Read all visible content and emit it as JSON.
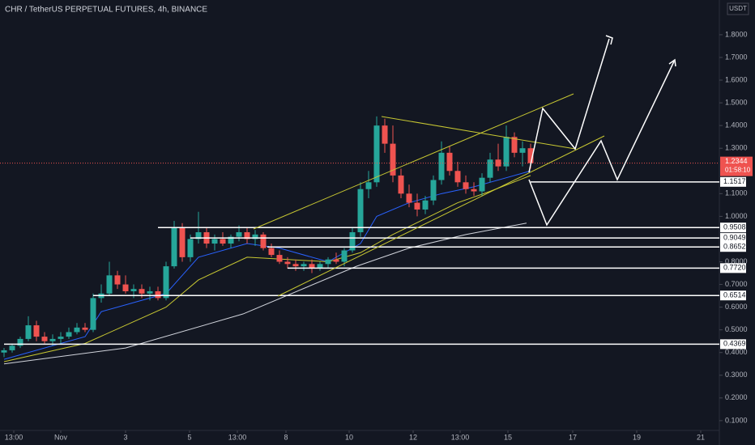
{
  "chart_data": {
    "type": "candlestick",
    "title": "CHR / TetherUS PERPETUAL FUTURES, 4h, BINANCE",
    "currency": "USDT",
    "countdown": "01:58:10",
    "up_color": "#26a69a",
    "down_color": "#ef5350",
    "xlim": [
      -0.5,
      88.3
    ],
    "ylim": [
      0.064,
      1.953
    ],
    "xticks": [
      {
        "value": 1.2,
        "label": "13:00"
      },
      {
        "value": 7,
        "label": "Nov"
      },
      {
        "value": 15,
        "label": "3"
      },
      {
        "value": 22.9,
        "label": "5"
      },
      {
        "value": 28.8,
        "label": "13:00"
      },
      {
        "value": 34.8,
        "label": "8"
      },
      {
        "value": 42.6,
        "label": "10"
      },
      {
        "value": 50.5,
        "label": "12"
      },
      {
        "value": 56.3,
        "label": "13:00"
      },
      {
        "value": 62.2,
        "label": "15"
      },
      {
        "value": 70.2,
        "label": "17"
      },
      {
        "value": 78.1,
        "label": "19"
      },
      {
        "value": 86,
        "label": "21"
      }
    ],
    "yticks": [
      {
        "value": 0.1,
        "label": "0.1000"
      },
      {
        "value": 0.2,
        "label": "0.2000"
      },
      {
        "value": 0.3,
        "label": "0.3000"
      },
      {
        "value": 0.4,
        "label": "0.4000"
      },
      {
        "value": 0.5,
        "label": "0.5000"
      },
      {
        "value": 0.6,
        "label": "0.6000"
      },
      {
        "value": 0.7,
        "label": "0.7000"
      },
      {
        "value": 0.8,
        "label": "0.8000"
      },
      {
        "value": 1.0,
        "label": "1.0000"
      },
      {
        "value": 1.1,
        "label": "1.1000"
      },
      {
        "value": 1.3,
        "label": "1.3000"
      },
      {
        "value": 1.4,
        "label": "1.4000"
      },
      {
        "value": 1.5,
        "label": "1.5000"
      },
      {
        "value": 1.6,
        "label": "1.6000"
      },
      {
        "value": 1.7,
        "label": "1.7000"
      },
      {
        "value": 1.8,
        "label": "1.8000"
      }
    ],
    "x": [
      0,
      1,
      2,
      3,
      4,
      5,
      6,
      7,
      8,
      9,
      10,
      11,
      12,
      13,
      14,
      15,
      16,
      17,
      18,
      19,
      20,
      21,
      22,
      23,
      24,
      25,
      26,
      27,
      28,
      29,
      30,
      31,
      32,
      33,
      34,
      35,
      36,
      37,
      38,
      39,
      40,
      41,
      42,
      43,
      44,
      45,
      46,
      47,
      48,
      49,
      50,
      51,
      52,
      53,
      54,
      55,
      56,
      57,
      58,
      59,
      60,
      61,
      62,
      63,
      64,
      65
    ],
    "candles": [
      [
        0.4,
        0.42,
        0.38,
        0.41
      ],
      [
        0.41,
        0.44,
        0.4,
        0.43
      ],
      [
        0.43,
        0.47,
        0.42,
        0.46
      ],
      [
        0.46,
        0.56,
        0.45,
        0.52
      ],
      [
        0.52,
        0.54,
        0.45,
        0.47
      ],
      [
        0.47,
        0.49,
        0.44,
        0.45
      ],
      [
        0.45,
        0.48,
        0.43,
        0.46
      ],
      [
        0.46,
        0.49,
        0.44,
        0.47
      ],
      [
        0.47,
        0.51,
        0.46,
        0.49
      ],
      [
        0.49,
        0.53,
        0.48,
        0.51
      ],
      [
        0.51,
        0.53,
        0.49,
        0.5
      ],
      [
        0.5,
        0.66,
        0.49,
        0.64
      ],
      [
        0.64,
        0.7,
        0.62,
        0.66
      ],
      [
        0.66,
        0.8,
        0.65,
        0.74
      ],
      [
        0.74,
        0.76,
        0.68,
        0.7
      ],
      [
        0.7,
        0.74,
        0.66,
        0.67
      ],
      [
        0.67,
        0.7,
        0.64,
        0.68
      ],
      [
        0.68,
        0.7,
        0.64,
        0.66
      ],
      [
        0.66,
        0.69,
        0.63,
        0.67
      ],
      [
        0.67,
        0.69,
        0.63,
        0.64
      ],
      [
        0.64,
        0.8,
        0.63,
        0.78
      ],
      [
        0.78,
        0.98,
        0.77,
        0.95
      ],
      [
        0.95,
        0.97,
        0.8,
        0.82
      ],
      [
        0.82,
        0.92,
        0.8,
        0.9
      ],
      [
        0.9,
        1.02,
        0.88,
        0.93
      ],
      [
        0.93,
        0.95,
        0.86,
        0.88
      ],
      [
        0.88,
        0.92,
        0.85,
        0.9
      ],
      [
        0.9,
        0.93,
        0.87,
        0.88
      ],
      [
        0.88,
        0.92,
        0.86,
        0.91
      ],
      [
        0.91,
        0.96,
        0.89,
        0.93
      ],
      [
        0.93,
        0.95,
        0.88,
        0.9
      ],
      [
        0.9,
        0.94,
        0.87,
        0.92
      ],
      [
        0.92,
        0.93,
        0.85,
        0.86
      ],
      [
        0.86,
        0.88,
        0.82,
        0.83
      ],
      [
        0.83,
        0.85,
        0.79,
        0.8
      ],
      [
        0.8,
        0.82,
        0.77,
        0.79
      ],
      [
        0.79,
        0.81,
        0.76,
        0.78
      ],
      [
        0.78,
        0.8,
        0.76,
        0.79
      ],
      [
        0.79,
        0.81,
        0.75,
        0.77
      ],
      [
        0.77,
        0.8,
        0.76,
        0.79
      ],
      [
        0.79,
        0.82,
        0.77,
        0.81
      ],
      [
        0.81,
        0.84,
        0.79,
        0.8
      ],
      [
        0.8,
        0.86,
        0.78,
        0.85
      ],
      [
        0.85,
        0.95,
        0.84,
        0.93
      ],
      [
        0.93,
        1.15,
        0.91,
        1.12
      ],
      [
        1.12,
        1.2,
        1.08,
        1.15
      ],
      [
        1.15,
        1.44,
        1.13,
        1.4
      ],
      [
        1.4,
        1.43,
        1.28,
        1.32
      ],
      [
        1.32,
        1.4,
        1.15,
        1.18
      ],
      [
        1.18,
        1.21,
        1.08,
        1.1
      ],
      [
        1.1,
        1.14,
        1.04,
        1.06
      ],
      [
        1.06,
        1.1,
        1.0,
        1.03
      ],
      [
        1.03,
        1.09,
        1.01,
        1.07
      ],
      [
        1.07,
        1.18,
        1.05,
        1.16
      ],
      [
        1.16,
        1.33,
        1.14,
        1.28
      ],
      [
        1.28,
        1.31,
        1.18,
        1.2
      ],
      [
        1.2,
        1.24,
        1.13,
        1.15
      ],
      [
        1.15,
        1.18,
        1.1,
        1.12
      ],
      [
        1.12,
        1.15,
        1.09,
        1.11
      ],
      [
        1.11,
        1.19,
        1.09,
        1.17
      ],
      [
        1.17,
        1.28,
        1.15,
        1.25
      ],
      [
        1.25,
        1.32,
        1.2,
        1.22
      ],
      [
        1.22,
        1.4,
        1.2,
        1.35
      ],
      [
        1.35,
        1.37,
        1.26,
        1.28
      ],
      [
        1.28,
        1.33,
        1.22,
        1.3
      ],
      [
        1.3,
        1.32,
        1.21,
        1.2344
      ]
    ],
    "current_price": {
      "value": 1.2344,
      "label": "1.2344"
    },
    "series": [
      {
        "color": "#2962ff",
        "x": [
          0,
          10,
          12,
          20,
          24,
          30,
          34,
          40,
          44,
          46,
          50,
          54,
          58,
          62,
          65
        ],
        "values": [
          0.37,
          0.47,
          0.58,
          0.66,
          0.82,
          0.88,
          0.86,
          0.8,
          0.88,
          1.0,
          1.06,
          1.1,
          1.13,
          1.17,
          1.2
        ]
      },
      {
        "color": "#c8c832",
        "x": [
          0,
          10,
          20,
          24,
          30,
          40,
          44,
          48,
          52,
          56,
          60,
          65
        ],
        "values": [
          0.36,
          0.44,
          0.6,
          0.72,
          0.82,
          0.8,
          0.84,
          0.92,
          0.99,
          1.06,
          1.11,
          1.18
        ]
      },
      {
        "color": "#d1d4dc",
        "x": [
          0,
          15,
          29.5,
          43.5,
          50,
          57,
          64.5
        ],
        "values": [
          0.35,
          0.42,
          0.57,
          0.78,
          0.86,
          0.92,
          0.97
        ]
      }
    ],
    "levels": [
      {
        "value": 1.1517,
        "label": "1.1517",
        "from": 65
      },
      {
        "value": 0.9508,
        "label": "0.9508",
        "from": 19
      },
      {
        "value": 0.9049,
        "label": "0.9049",
        "from": 23
      },
      {
        "value": 0.8652,
        "label": "0.8652",
        "from": 32.5
      },
      {
        "value": 0.772,
        "label": "0.7720",
        "from": 35
      },
      {
        "value": 0.6514,
        "label": "0.6514",
        "from": 11
      },
      {
        "value": 0.4369,
        "label": "0.4369",
        "from": 0
      }
    ]
  }
}
